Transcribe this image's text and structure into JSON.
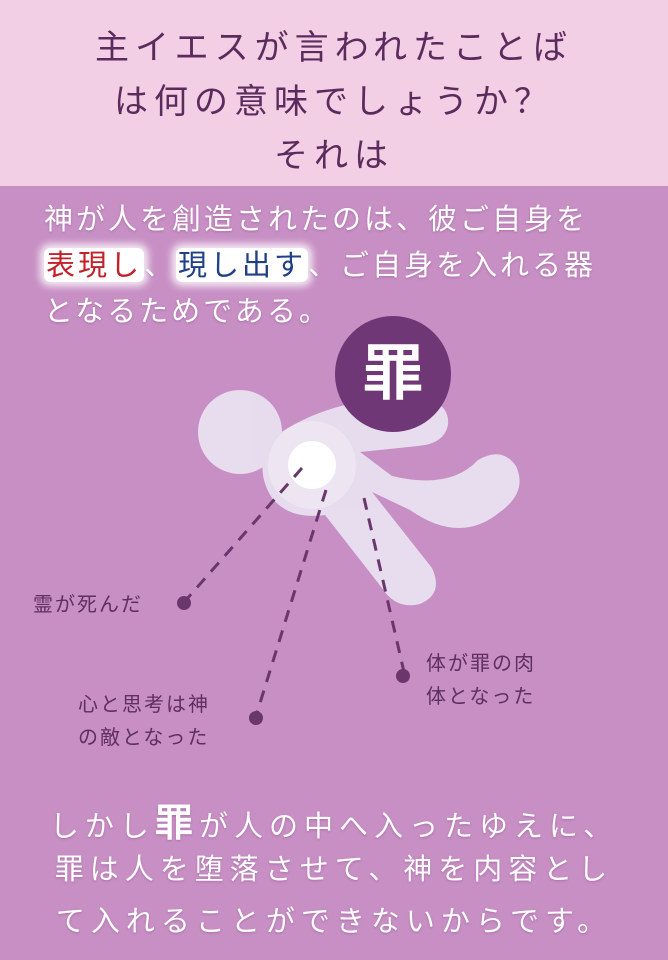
{
  "header": {
    "line1": "主イエスが言われたことば",
    "line2": "は何の意味でしょうか？",
    "line3": "それは"
  },
  "intro": {
    "line1": "神が人を創造されたのは、彼ご自身を",
    "line2_red": "表現し",
    "line2_sep": "、",
    "line2_blue": "現し出す",
    "line2_rest": "、ご自身を入れる器",
    "line3": "となるためである。"
  },
  "figure": {
    "badge": "罪",
    "label_spirit": "霊が死んだ",
    "label_mind_1": "心と思考は神",
    "label_mind_2": "の敵となった",
    "label_body_1": "体が罪の肉",
    "label_body_2": "体となった"
  },
  "conclusion": {
    "line1_a": "しかし",
    "line1_big": "罪",
    "line1_b": "が人の中へ入ったゆえに、",
    "line2": "罪は人を堕落させて、神を内容とし",
    "line3": "て入れることができないからです。"
  },
  "colors": {
    "header_bg": "#f2cfe4",
    "body_bg": "#c78fc4",
    "heading_text": "#5c2b5e",
    "highlight_red": "#c4202a",
    "highlight_blue": "#1f3f86",
    "badge_bg": "#6f3776"
  }
}
